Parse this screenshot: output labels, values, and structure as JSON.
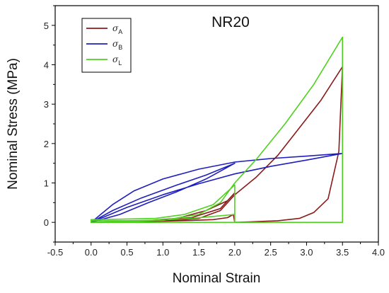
{
  "chart_data": {
    "type": "line",
    "title": "NR20",
    "xlabel": "Nominal Strain",
    "ylabel": "Nominal Stress (MPa)",
    "xlim": [
      -0.5,
      4.0
    ],
    "ylim": [
      -0.5,
      5.5
    ],
    "xticks": [
      "-0.5",
      "0.0",
      "0.5",
      "1.0",
      "1.5",
      "2.0",
      "2.5",
      "3.0",
      "3.5",
      "4.0"
    ],
    "yticks": [
      "0",
      "1",
      "2",
      "3",
      "4",
      "5"
    ],
    "grid": false,
    "legend_position": "top-left",
    "series": [
      {
        "name": "σ",
        "subscript": "A",
        "color": "#8b1a1a",
        "x": [
          0.0,
          0.5,
          1.0,
          1.5,
          1.8,
          2.0,
          2.3,
          2.6,
          2.9,
          3.2,
          3.5,
          3.45,
          3.3,
          3.1,
          2.9,
          2.6,
          2.2,
          2.0,
          1.98,
          1.9,
          1.7,
          1.4,
          1.0,
          0.5,
          0.0,
          0.3,
          0.7,
          1.2,
          1.6,
          1.9,
          2.0,
          1.8,
          1.4,
          0.9,
          0.4,
          0.0
        ],
        "y": [
          0.0,
          0.01,
          0.03,
          0.1,
          0.3,
          0.7,
          1.15,
          1.7,
          2.4,
          3.1,
          3.95,
          1.8,
          0.6,
          0.25,
          0.1,
          0.04,
          0.01,
          0.0,
          0.2,
          0.12,
          0.07,
          0.05,
          0.03,
          0.01,
          0.0,
          0.01,
          0.03,
          0.1,
          0.3,
          0.55,
          0.75,
          0.35,
          0.12,
          0.04,
          0.01,
          0.0
        ]
      },
      {
        "name": "σ",
        "subscript": "B",
        "color": "#1f1fbf",
        "x": [
          0.0,
          0.3,
          0.6,
          1.0,
          1.5,
          2.0,
          2.5,
          3.0,
          3.5,
          3.0,
          2.5,
          2.0,
          1.5,
          1.0,
          0.5,
          0.2,
          0.0,
          0.3,
          0.7,
          1.2,
          1.6,
          2.0,
          1.6,
          1.2,
          0.8,
          0.4,
          0.0
        ],
        "y": [
          0.0,
          0.45,
          0.8,
          1.1,
          1.35,
          1.53,
          1.62,
          1.68,
          1.75,
          1.58,
          1.42,
          1.23,
          0.98,
          0.7,
          0.38,
          0.15,
          0.0,
          0.3,
          0.62,
          0.95,
          1.2,
          1.5,
          1.1,
          0.78,
          0.5,
          0.2,
          0.0
        ]
      },
      {
        "name": "σ",
        "subscript": "L",
        "color": "#4fd11f",
        "x": [
          0.0,
          0.5,
          1.0,
          1.5,
          1.8,
          2.0,
          2.3,
          2.7,
          3.1,
          3.5,
          3.5,
          0.0,
          0.0,
          0.4,
          0.9,
          1.3,
          1.7,
          2.0,
          2.0,
          0.0,
          0.0,
          0.5,
          1.0,
          1.4,
          1.7,
          2.0,
          2.0,
          0.0
        ],
        "y": [
          0.0,
          0.02,
          0.05,
          0.2,
          0.5,
          1.0,
          1.6,
          2.5,
          3.5,
          4.7,
          0.0,
          0.0,
          0.07,
          0.08,
          0.1,
          0.2,
          0.45,
          0.95,
          0.0,
          0.0,
          0.04,
          0.04,
          0.06,
          0.1,
          0.15,
          0.2,
          0.0,
          0.0
        ]
      }
    ]
  }
}
